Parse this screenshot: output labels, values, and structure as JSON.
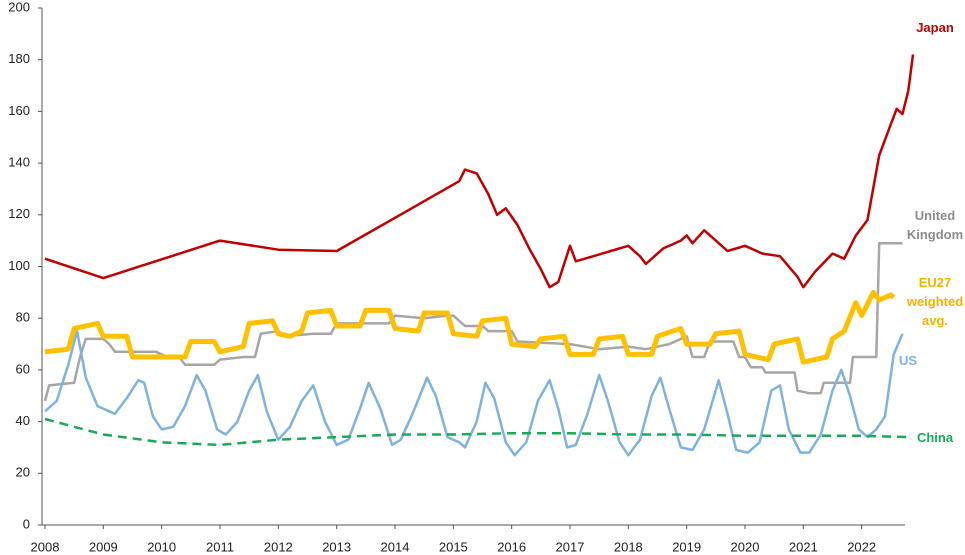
{
  "chart_data": {
    "type": "line",
    "xlim": [
      2008,
      2023
    ],
    "xticks": [
      2008,
      2009,
      2010,
      2011,
      2012,
      2013,
      2014,
      2015,
      2016,
      2017,
      2018,
      2019,
      2020,
      2021,
      2022
    ],
    "ylim": [
      0,
      200
    ],
    "yticks": [
      0,
      20,
      40,
      60,
      80,
      100,
      120,
      140,
      160,
      180,
      200
    ],
    "grid": false,
    "series": [
      {
        "name": "United Kingdom",
        "color": "#a6a6a6",
        "label_color": "#8c8c8c",
        "width": 2.5,
        "dash": false,
        "x": [
          2008,
          2008.07,
          2008.5,
          2008.6,
          2008.7,
          2009.0,
          2009.1,
          2009.2,
          2009.5,
          2009.9,
          2010.1,
          2010.3,
          2010.4,
          2010.9,
          2011.0,
          2011.4,
          2011.6,
          2011.7,
          2012.0,
          2012.1,
          2012.6,
          2012.9,
          2013.0,
          2013.9,
          2014.0,
          2014.5,
          2014.9,
          2015.0,
          2015.2,
          2015.5,
          2015.6,
          2016.0,
          2016.1,
          2017.0,
          2017.5,
          2018.0,
          2018.3,
          2018.7,
          2019.0,
          2019.1,
          2019.3,
          2019.4,
          2019.8,
          2019.9,
          2020.0,
          2020.1,
          2020.3,
          2020.35,
          2020.85,
          2020.9,
          2021.1,
          2021.3,
          2021.35,
          2021.8,
          2021.85,
          2022.25,
          2022.3,
          2022.7
        ],
        "values": [
          48,
          54,
          55,
          65,
          72,
          72,
          70,
          67,
          67,
          67,
          65,
          65,
          62,
          62,
          64,
          65,
          65,
          74,
          75,
          73,
          74,
          74,
          78,
          78,
          81,
          80,
          81,
          81,
          77,
          77,
          75,
          75,
          71,
          70,
          68,
          69,
          68,
          70,
          73,
          65,
          65,
          71,
          71,
          65,
          65,
          61,
          61,
          59,
          59,
          52,
          51,
          51,
          55,
          55,
          65,
          65,
          109,
          109
        ]
      },
      {
        "name": "US",
        "color": "#7fb2de",
        "label_color": "#7fb2de",
        "width": 2.5,
        "dash": false,
        "x": [
          2008,
          2008.2,
          2008.4,
          2008.55,
          2008.7,
          2008.9,
          2009.2,
          2009.4,
          2009.6,
          2009.7,
          2009.85,
          2010.0,
          2010.2,
          2010.4,
          2010.6,
          2010.75,
          2010.95,
          2011.1,
          2011.3,
          2011.5,
          2011.65,
          2011.8,
          2012.0,
          2012.2,
          2012.4,
          2012.6,
          2012.8,
          2013.0,
          2013.2,
          2013.4,
          2013.55,
          2013.75,
          2013.95,
          2014.1,
          2014.3,
          2014.55,
          2014.7,
          2014.9,
          2015.1,
          2015.2,
          2015.4,
          2015.55,
          2015.7,
          2015.9,
          2016.05,
          2016.25,
          2016.45,
          2016.65,
          2016.8,
          2016.95,
          2017.1,
          2017.3,
          2017.5,
          2017.65,
          2017.85,
          2018.0,
          2018.2,
          2018.4,
          2018.55,
          2018.7,
          2018.9,
          2019.1,
          2019.3,
          2019.55,
          2019.7,
          2019.85,
          2020.05,
          2020.25,
          2020.45,
          2020.6,
          2020.75,
          2020.95,
          2021.1,
          2021.3,
          2021.5,
          2021.65,
          2021.8,
          2021.95,
          2022.1,
          2022.25,
          2022.4,
          2022.55,
          2022.7
        ],
        "values": [
          44,
          48,
          62,
          75,
          57,
          46,
          43,
          49,
          56,
          55,
          42,
          37,
          38,
          46,
          58,
          52,
          37,
          35,
          40,
          52,
          58,
          44,
          33,
          38,
          48,
          54,
          40,
          31,
          33,
          45,
          55,
          45,
          31,
          33,
          43,
          57,
          50,
          34,
          32,
          30,
          40,
          55,
          49,
          32,
          27,
          32,
          48,
          56,
          45,
          30,
          31,
          43,
          58,
          48,
          32,
          27,
          33,
          50,
          57,
          45,
          30,
          29,
          37,
          56,
          43,
          29,
          28,
          32,
          52,
          54,
          37,
          28,
          28,
          35,
          52,
          60,
          50,
          37,
          34,
          37,
          42,
          66,
          74
        ]
      },
      {
        "name": "EU27 weighted avg.",
        "color": "#ffc000",
        "label_color": "#f2b200",
        "width": 5,
        "dash": false,
        "x": [
          2008,
          2008.4,
          2008.5,
          2008.9,
          2009.0,
          2009.4,
          2009.5,
          2010.4,
          2010.5,
          2010.9,
          2011.0,
          2011.4,
          2011.5,
          2011.9,
          2012.0,
          2012.2,
          2012.4,
          2012.5,
          2012.9,
          2013.0,
          2013.4,
          2013.5,
          2013.9,
          2014.0,
          2014.4,
          2014.5,
          2014.9,
          2015.0,
          2015.4,
          2015.5,
          2015.9,
          2016.0,
          2016.4,
          2016.5,
          2016.9,
          2017.0,
          2017.4,
          2017.5,
          2017.9,
          2018.0,
          2018.4,
          2018.5,
          2018.9,
          2019.0,
          2019.4,
          2019.5,
          2019.9,
          2020.0,
          2020.4,
          2020.5,
          2020.9,
          2021.0,
          2021.4,
          2021.5,
          2021.7,
          2021.9,
          2022.0,
          2022.2,
          2022.3,
          2022.5,
          2022.55
        ],
        "values": [
          67,
          68,
          76,
          78,
          73,
          73,
          65,
          65,
          71,
          71,
          67,
          69,
          78,
          79,
          74,
          73,
          75,
          82,
          83,
          77,
          77,
          83,
          83,
          76,
          75,
          82,
          82,
          74,
          73,
          79,
          80,
          70,
          69,
          72,
          73,
          66,
          66,
          72,
          73,
          66,
          66,
          73,
          76,
          70,
          70,
          74,
          75,
          66,
          64,
          70,
          72,
          63,
          65,
          72,
          75,
          86,
          81,
          90,
          87,
          89,
          88
        ]
      },
      {
        "name": "China",
        "color": "#1aaa55",
        "label_color": "#1aaa55",
        "width": 2.5,
        "dash": true,
        "x": [
          2008,
          2008.5,
          2009,
          2010,
          2011,
          2012,
          2013,
          2014,
          2015,
          2016,
          2017,
          2018,
          2019,
          2020,
          2021,
          2022,
          2022.8
        ],
        "values": [
          41,
          38,
          35,
          32,
          31,
          33,
          34,
          35,
          35,
          35.5,
          35.5,
          35,
          35,
          34.5,
          34.5,
          34.5,
          34
        ]
      },
      {
        "name": "Japan",
        "color": "#c00000",
        "label_color": "#c00000",
        "width": 2.5,
        "dash": false,
        "x": [
          2008,
          2009,
          2011,
          2012,
          2013,
          2015.1,
          2015.2,
          2015.4,
          2015.6,
          2015.75,
          2015.9,
          2016.1,
          2016.3,
          2016.5,
          2016.65,
          2016.8,
          2017.0,
          2017.1,
          2017.4,
          2017.7,
          2018.0,
          2018.2,
          2018.3,
          2018.6,
          2018.9,
          2019.0,
          2019.1,
          2019.3,
          2019.5,
          2019.7,
          2020.0,
          2020.3,
          2020.6,
          2020.9,
          2021.0,
          2021.2,
          2021.5,
          2021.7,
          2021.9,
          2022.1,
          2022.3,
          2022.5,
          2022.6,
          2022.7,
          2022.8,
          2022.88
        ],
        "values": [
          103,
          95.5,
          110,
          106.5,
          106,
          133,
          137.5,
          136,
          128,
          120,
          122.5,
          116,
          107,
          99,
          92,
          94,
          108,
          102,
          104,
          106,
          108,
          104,
          101,
          107,
          110,
          112,
          109,
          114,
          110,
          106,
          108,
          105,
          104,
          96,
          92,
          98,
          105,
          103,
          112,
          118,
          143,
          155,
          161,
          159,
          168,
          182
        ]
      }
    ]
  }
}
